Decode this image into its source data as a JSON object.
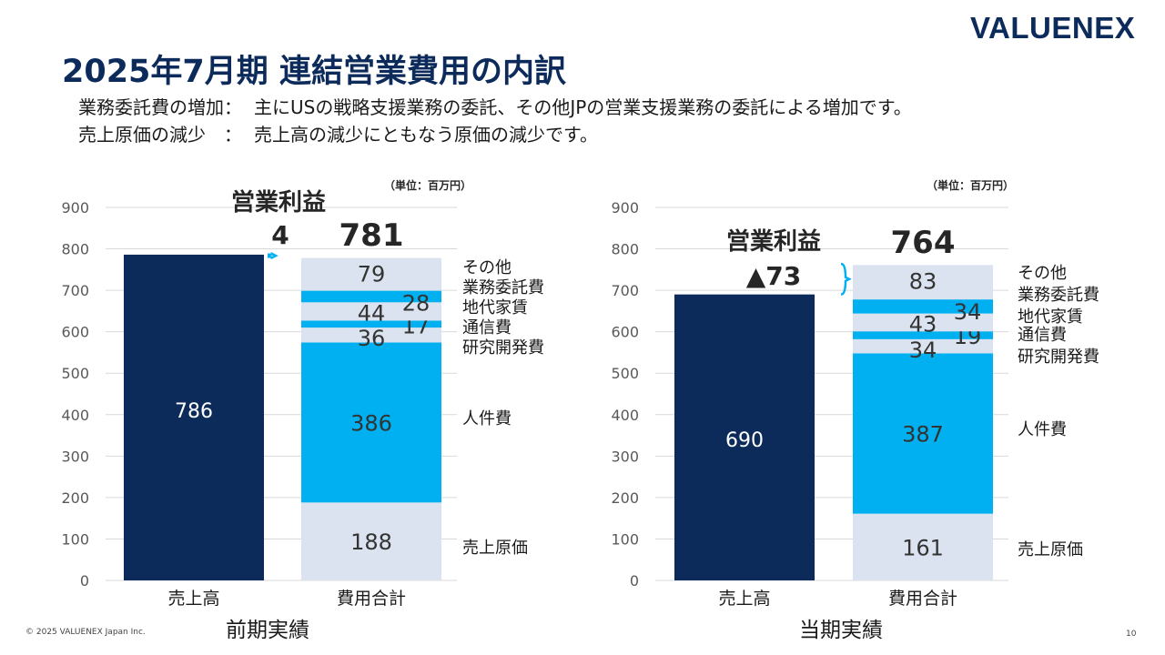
{
  "logo": {
    "text": "VALUENEX"
  },
  "title": "2025年7月期 連結営業費用の内訳",
  "notes": [
    {
      "label": "業務委託費の増加：",
      "text": "主にUSの戦略支援業務の委託、その他JPの営業支援業務の委託による増加です。"
    },
    {
      "label": "売上原価の減少　：",
      "text": "売上高の減少にともなう原価の減少です。"
    }
  ],
  "footer": {
    "copyright": "© 2025 VALUENEX Japan Inc.",
    "page": "10"
  },
  "colors": {
    "navy": "#0c2b5b",
    "cyan": "#00b0f0",
    "pale": "#dbe3f0",
    "mid": "#c9d5e8",
    "grid": "#d9d9d9"
  },
  "chart_data": [
    {
      "type": "bar",
      "title": "前期実績",
      "unit": "（単位：百万円）",
      "ylim": [
        0,
        900
      ],
      "yticks": [
        0,
        100,
        200,
        300,
        400,
        500,
        600,
        700,
        800,
        900
      ],
      "categories": [
        "売上高",
        "費用合計"
      ],
      "revenue": 786,
      "cost_total": 781,
      "cost_total_label": "781",
      "operating_profit": {
        "label": "営業利益",
        "value": 4,
        "value_label": "4"
      },
      "cost_breakdown": [
        {
          "name": "売上原価",
          "value": 188,
          "color": "pale"
        },
        {
          "name": "人件費",
          "value": 386,
          "color": "cyan"
        },
        {
          "name": "研究開発費",
          "value": 36,
          "color": "pale"
        },
        {
          "name": "通信費",
          "value": 17,
          "color": "cyan"
        },
        {
          "name": "地代家賃",
          "value": 44,
          "color": "pale"
        },
        {
          "name": "業務委託費",
          "value": 28,
          "color": "cyan"
        },
        {
          "name": "その他",
          "value": 79,
          "color": "pale"
        }
      ]
    },
    {
      "type": "bar",
      "title": "当期実績",
      "unit": "（単位：百万円）",
      "ylim": [
        0,
        900
      ],
      "yticks": [
        0,
        100,
        200,
        300,
        400,
        500,
        600,
        700,
        800,
        900
      ],
      "categories": [
        "売上高",
        "費用合計"
      ],
      "revenue": 690,
      "cost_total": 764,
      "cost_total_label": "764",
      "operating_profit": {
        "label": "営業利益",
        "value": -73,
        "value_label": "▲73"
      },
      "cost_breakdown": [
        {
          "name": "売上原価",
          "value": 161,
          "color": "pale"
        },
        {
          "name": "人件費",
          "value": 387,
          "color": "cyan"
        },
        {
          "name": "研究開発費",
          "value": 34,
          "color": "pale"
        },
        {
          "name": "通信費",
          "value": 19,
          "color": "cyan"
        },
        {
          "name": "地代家賃",
          "value": 43,
          "color": "pale"
        },
        {
          "name": "業務委託費",
          "value": 34,
          "color": "cyan"
        },
        {
          "name": "その他",
          "value": 83,
          "color": "pale"
        }
      ]
    }
  ]
}
